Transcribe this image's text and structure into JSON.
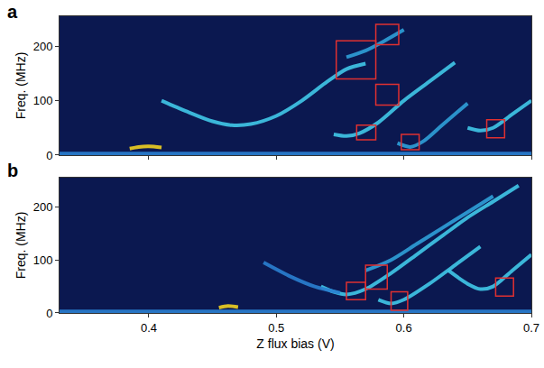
{
  "chart_data": [
    {
      "type": "line",
      "panel_label": "a",
      "y_label": "Freq. (MHz)",
      "xlim": [
        0.33,
        0.7
      ],
      "xticks": [
        0.4,
        0.5,
        0.6,
        0.7
      ],
      "ylim": [
        0,
        255
      ],
      "yticks": [
        0,
        100,
        200
      ],
      "tick_labels": "y",
      "grid": false,
      "background": "#0b1850",
      "series": [
        {
          "color": "#2a7fd0",
          "x": [
            0.33,
            0.7
          ],
          "values": [
            3,
            3
          ]
        },
        {
          "color": "#f0d020",
          "x": [
            0.385,
            0.392,
            0.4,
            0.41
          ],
          "values": [
            12,
            15,
            16,
            14
          ]
        },
        {
          "color": "#40c8e8",
          "x": [
            0.41,
            0.43,
            0.45,
            0.465,
            0.48,
            0.5,
            0.52,
            0.54,
            0.555,
            0.57
          ],
          "values": [
            100,
            80,
            62,
            55,
            57,
            72,
            100,
            135,
            158,
            168
          ]
        },
        {
          "color": "#2fa0d8",
          "x": [
            0.555,
            0.57,
            0.585,
            0.6
          ],
          "values": [
            180,
            192,
            210,
            230
          ]
        },
        {
          "color": "#40c8e8",
          "x": [
            0.545,
            0.555,
            0.565,
            0.58,
            0.6,
            0.62,
            0.64
          ],
          "values": [
            38,
            35,
            40,
            60,
            100,
            135,
            170
          ]
        },
        {
          "color": "#2fa0d8",
          "x": [
            0.595,
            0.605,
            0.615,
            0.63,
            0.65
          ],
          "values": [
            22,
            15,
            25,
            55,
            95
          ]
        },
        {
          "color": "#40c8e8",
          "x": [
            0.65,
            0.66,
            0.67,
            0.685,
            0.7
          ],
          "values": [
            50,
            45,
            50,
            75,
            100
          ]
        }
      ],
      "boxes": {
        "color": "#e03030",
        "rects": [
          {
            "x0": 0.547,
            "x1": 0.578,
            "y0": 140,
            "y1": 210
          },
          {
            "x0": 0.578,
            "x1": 0.596,
            "y0": 203,
            "y1": 240
          },
          {
            "x0": 0.578,
            "x1": 0.596,
            "y0": 92,
            "y1": 130
          },
          {
            "x0": 0.563,
            "x1": 0.578,
            "y0": 28,
            "y1": 55
          },
          {
            "x0": 0.598,
            "x1": 0.612,
            "y0": 10,
            "y1": 38
          },
          {
            "x0": 0.665,
            "x1": 0.679,
            "y0": 32,
            "y1": 65
          }
        ]
      }
    },
    {
      "type": "line",
      "panel_label": "b",
      "x_label": "Z flux bias (V)",
      "y_label": "Freq. (MHz)",
      "xlim": [
        0.33,
        0.7
      ],
      "xticks": [
        0.4,
        0.5,
        0.6,
        0.7
      ],
      "ylim": [
        0,
        255
      ],
      "yticks": [
        0,
        100,
        200
      ],
      "grid": false,
      "background": "#0b1850",
      "series": [
        {
          "color": "#2a7fd0",
          "x": [
            0.33,
            0.7
          ],
          "values": [
            3,
            3
          ]
        },
        {
          "color": "#f0d020",
          "x": [
            0.455,
            0.462,
            0.47
          ],
          "values": [
            10,
            13,
            11
          ]
        },
        {
          "color": "#40c8e8",
          "x": [
            0.535,
            0.545,
            0.555,
            0.57,
            0.59,
            0.61,
            0.63,
            0.65,
            0.67,
            0.69
          ],
          "values": [
            50,
            40,
            35,
            45,
            75,
            110,
            145,
            180,
            210,
            240
          ]
        },
        {
          "color": "#2fa0d8",
          "x": [
            0.57,
            0.59,
            0.61,
            0.63,
            0.65,
            0.67
          ],
          "values": [
            80,
            100,
            130,
            160,
            190,
            220
          ]
        },
        {
          "color": "#2a7fd0",
          "x": [
            0.49,
            0.51,
            0.53,
            0.55
          ],
          "values": [
            95,
            70,
            50,
            38
          ]
        },
        {
          "color": "#40c8e8",
          "x": [
            0.58,
            0.59,
            0.6,
            0.62,
            0.64,
            0.66
          ],
          "values": [
            25,
            18,
            25,
            55,
            90,
            125
          ]
        },
        {
          "color": "#40c8e8",
          "x": [
            0.635,
            0.65,
            0.66,
            0.67,
            0.685,
            0.7
          ],
          "values": [
            80,
            55,
            45,
            50,
            80,
            110
          ]
        }
      ],
      "boxes": {
        "color": "#e03030",
        "rects": [
          {
            "x0": 0.555,
            "x1": 0.57,
            "y0": 25,
            "y1": 58
          },
          {
            "x0": 0.57,
            "x1": 0.587,
            "y0": 45,
            "y1": 90
          },
          {
            "x0": 0.59,
            "x1": 0.603,
            "y0": 5,
            "y1": 40
          },
          {
            "x0": 0.672,
            "x1": 0.686,
            "y0": 32,
            "y1": 66
          }
        ]
      }
    }
  ]
}
